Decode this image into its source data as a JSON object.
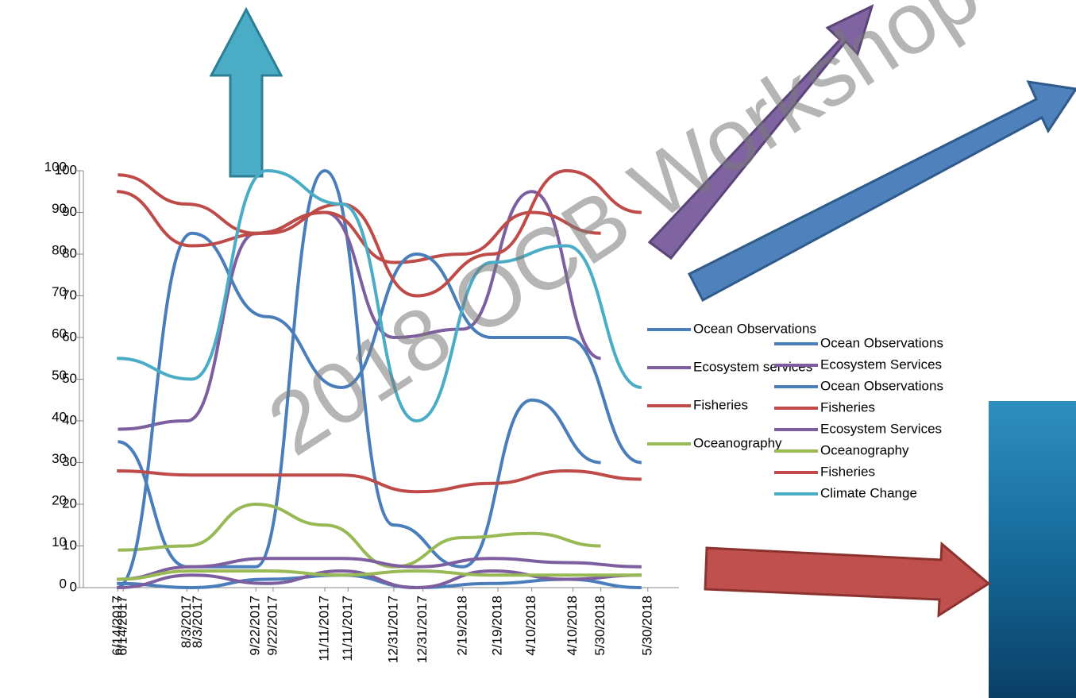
{
  "watermark": "2018 OCB Workshop",
  "chart_data": [
    {
      "type": "line",
      "categories": [
        "6/14/2017",
        "8/3/2017",
        "9/22/2017",
        "11/11/2017",
        "12/31/2017",
        "2/19/2018",
        "4/10/2018",
        "5/30/2018"
      ],
      "ylim": [
        0,
        100
      ],
      "yticks": [
        0,
        10,
        20,
        30,
        40,
        50,
        60,
        70,
        80,
        90,
        100
      ],
      "series": [
        {
          "name": "Ocean Observations",
          "color": "#4a7ebb",
          "values": [
            35,
            5,
            5,
            100,
            15,
            5,
            45,
            30
          ]
        },
        {
          "name": "Ecosystem services",
          "color": "#7d5fa0",
          "values": [
            38,
            40,
            85,
            90,
            60,
            62,
            95,
            55
          ]
        },
        {
          "name": "Fisheries",
          "color": "#be4b48",
          "values": [
            99,
            92,
            85,
            90,
            78,
            80,
            90,
            85
          ]
        },
        {
          "name": "Oceanography",
          "color": "#98b954",
          "values": [
            9,
            10,
            20,
            15,
            5,
            12,
            13,
            10
          ]
        }
      ]
    },
    {
      "type": "line",
      "categories": [
        "6/14/2017",
        "8/3/2017",
        "9/22/2017",
        "11/11/2017",
        "12/31/2017",
        "2/19/2018",
        "4/10/2018",
        "5/30/2018"
      ],
      "ylim": [
        0,
        100
      ],
      "yticks": [
        0,
        10,
        20,
        30,
        40,
        50,
        60,
        70,
        80,
        90,
        100
      ],
      "series": [
        {
          "name": "Ocean Observations",
          "color": "#4a7ebb",
          "values": [
            1,
            0,
            2,
            3,
            0,
            1,
            2,
            0
          ]
        },
        {
          "name": "Ecosystem Services",
          "color": "#7d5fa0",
          "values": [
            2,
            5,
            7,
            7,
            5,
            7,
            6,
            5
          ]
        },
        {
          "name": "Ocean Observations",
          "color": "#4a7ebb",
          "values": [
            0,
            85,
            65,
            48,
            80,
            60,
            60,
            30
          ]
        },
        {
          "name": "Fisheries",
          "color": "#be4b48",
          "values": [
            28,
            27,
            27,
            27,
            23,
            25,
            28,
            26
          ]
        },
        {
          "name": "Ecosystem Services",
          "color": "#7d5fa0",
          "values": [
            0,
            3,
            1,
            4,
            0,
            4,
            2,
            3
          ]
        },
        {
          "name": "Oceanography",
          "color": "#98b954",
          "values": [
            2,
            4,
            4,
            3,
            4,
            3,
            3,
            3
          ]
        },
        {
          "name": "Fisheries",
          "color": "#be4b48",
          "values": [
            95,
            82,
            85,
            92,
            70,
            80,
            100,
            90
          ]
        },
        {
          "name": "Climate Change",
          "color": "#4bacc6",
          "values": [
            55,
            50,
            100,
            92,
            40,
            78,
            82,
            48
          ]
        }
      ]
    }
  ]
}
